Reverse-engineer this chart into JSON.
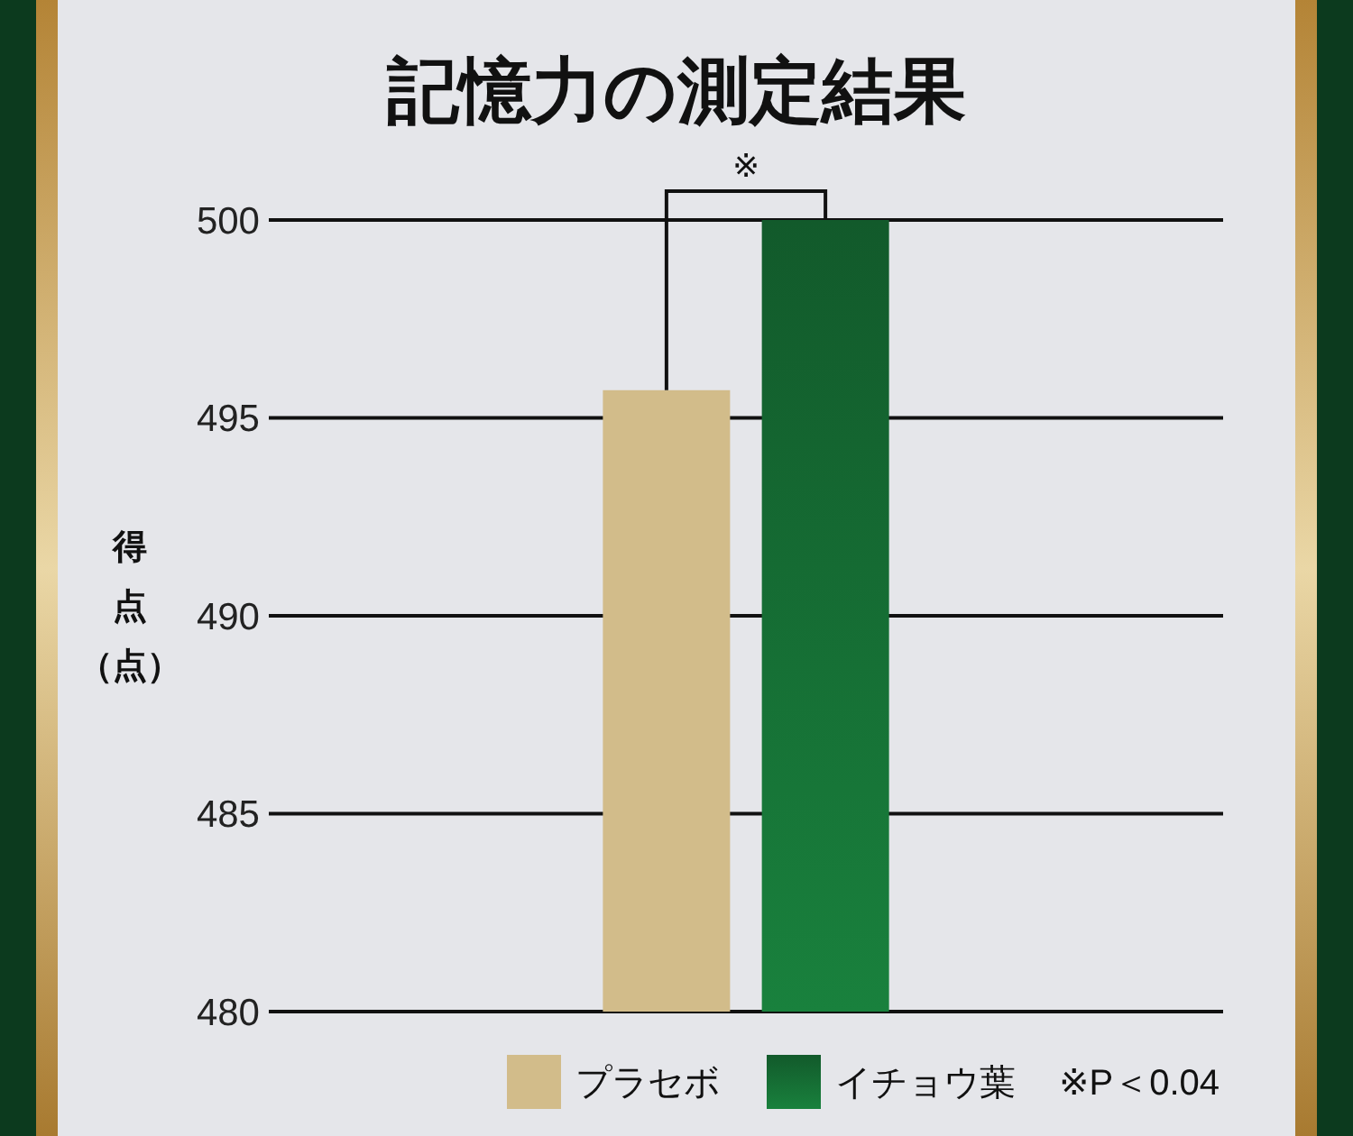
{
  "chart_data": {
    "type": "bar",
    "title": "記憶力の測定結果",
    "ylabel": "得点（点）",
    "categories": [
      null
    ],
    "series": [
      {
        "name": "プラセボ",
        "color": "#d2bc8a",
        "values": [
          495.7
        ]
      },
      {
        "name": "イチョウ葉",
        "color": "#156c33",
        "values": [
          500
        ]
      }
    ],
    "ylim": [
      480,
      500
    ],
    "yticks": [
      480,
      485,
      490,
      495,
      500
    ],
    "grid": "y",
    "legend": "bottom",
    "annotations": [
      "※",
      "※P＜0.04"
    ]
  }
}
